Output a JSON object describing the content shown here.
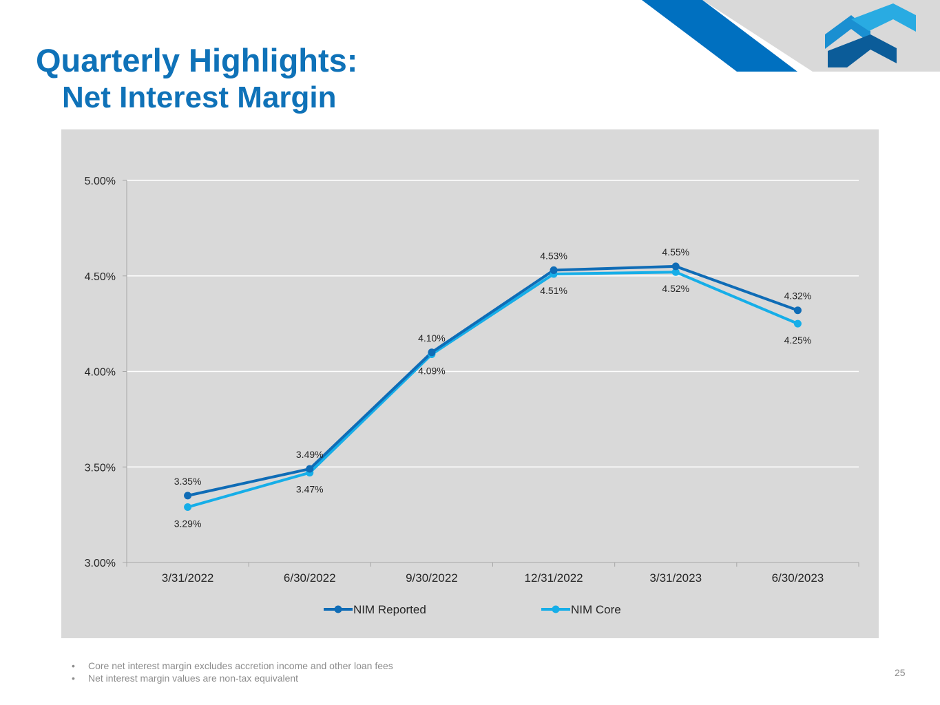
{
  "slide": {
    "title_line1": "Quarterly Highlights:",
    "title_line2": "Net Interest Margin",
    "page_number": "25",
    "footnotes": [
      "Core net interest margin excludes accretion income and other loan fees",
      "Net interest margin values are non-tax equivalent"
    ],
    "bullet": "•"
  },
  "colors": {
    "title": "#0f72b8",
    "banner_dark": "#0070c0",
    "banner_grey": "#d9d9d9",
    "logo_light": "#29abe2",
    "logo_mid": "#1a8fd1",
    "logo_dark": "#0b5c99"
  },
  "chart_data": {
    "type": "line",
    "title": "",
    "xlabel": "",
    "ylabel": "",
    "categories": [
      "3/31/2022",
      "6/30/2022",
      "9/30/2022",
      "12/31/2022",
      "3/31/2023",
      "6/30/2023"
    ],
    "ylim": [
      3.0,
      5.0
    ],
    "yticks": [
      3.0,
      3.5,
      4.0,
      4.5,
      5.0
    ],
    "ytick_labels": [
      "3.00%",
      "3.50%",
      "4.00%",
      "4.50%",
      "5.00%"
    ],
    "grid": true,
    "legend_position": "bottom",
    "series": [
      {
        "name": "NIM Reported",
        "color": "#0f6cb6",
        "values": [
          3.35,
          3.49,
          4.1,
          4.53,
          4.55,
          4.32
        ],
        "labels": [
          "3.35%",
          "3.49%",
          "4.10%",
          "4.53%",
          "4.55%",
          "4.32%"
        ],
        "label_position": "above"
      },
      {
        "name": "NIM Core",
        "color": "#16aee8",
        "values": [
          3.29,
          3.47,
          4.09,
          4.51,
          4.52,
          4.25
        ],
        "labels": [
          "3.29%",
          "3.47%",
          "4.09%",
          "4.51%",
          "4.52%",
          "4.25%"
        ],
        "label_position": "below"
      }
    ]
  }
}
